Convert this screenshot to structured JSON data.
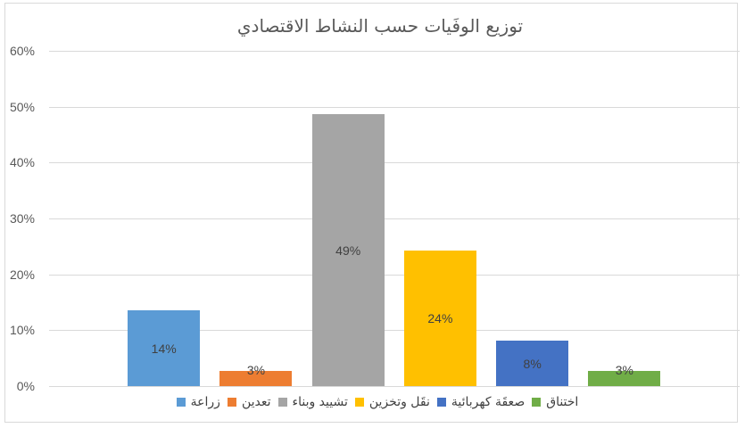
{
  "chart_data": {
    "type": "bar",
    "title": "توزيع الوفَيات حسب النشاط الاقتصادي",
    "categories": [
      "زراعة",
      "تعدين",
      "تشييد وبناء",
      "نقَل وتخزين",
      "صعقَة كهربائية",
      "اختناق"
    ],
    "values": [
      13.5,
      2.7,
      48.6,
      24.3,
      8.1,
      2.7
    ],
    "value_labels": [
      "14%",
      "3%",
      "49%",
      "24%",
      "8%",
      "3%"
    ],
    "bar_colors": [
      "#5b9bd5",
      "#ed7d31",
      "#a5a5a5",
      "#ffc000",
      "#4472c4",
      "#70ad47"
    ],
    "y_axis": {
      "ticks": [
        "0%",
        "10%",
        "20%",
        "30%",
        "40%",
        "50%",
        "60%"
      ],
      "min": 0,
      "max": 60,
      "step": 10
    },
    "xlabel": "",
    "ylabel": "",
    "grid": true,
    "legend_position": "bottom",
    "style": {
      "title_color": "#595959",
      "tick_color": "#595959",
      "data_label_color": "#404040",
      "legend_text_color": "#404040",
      "gridline_color": "#d9d9d9",
      "chart_border_color": "#d9d9d9",
      "background_color": "#ffffff"
    }
  }
}
